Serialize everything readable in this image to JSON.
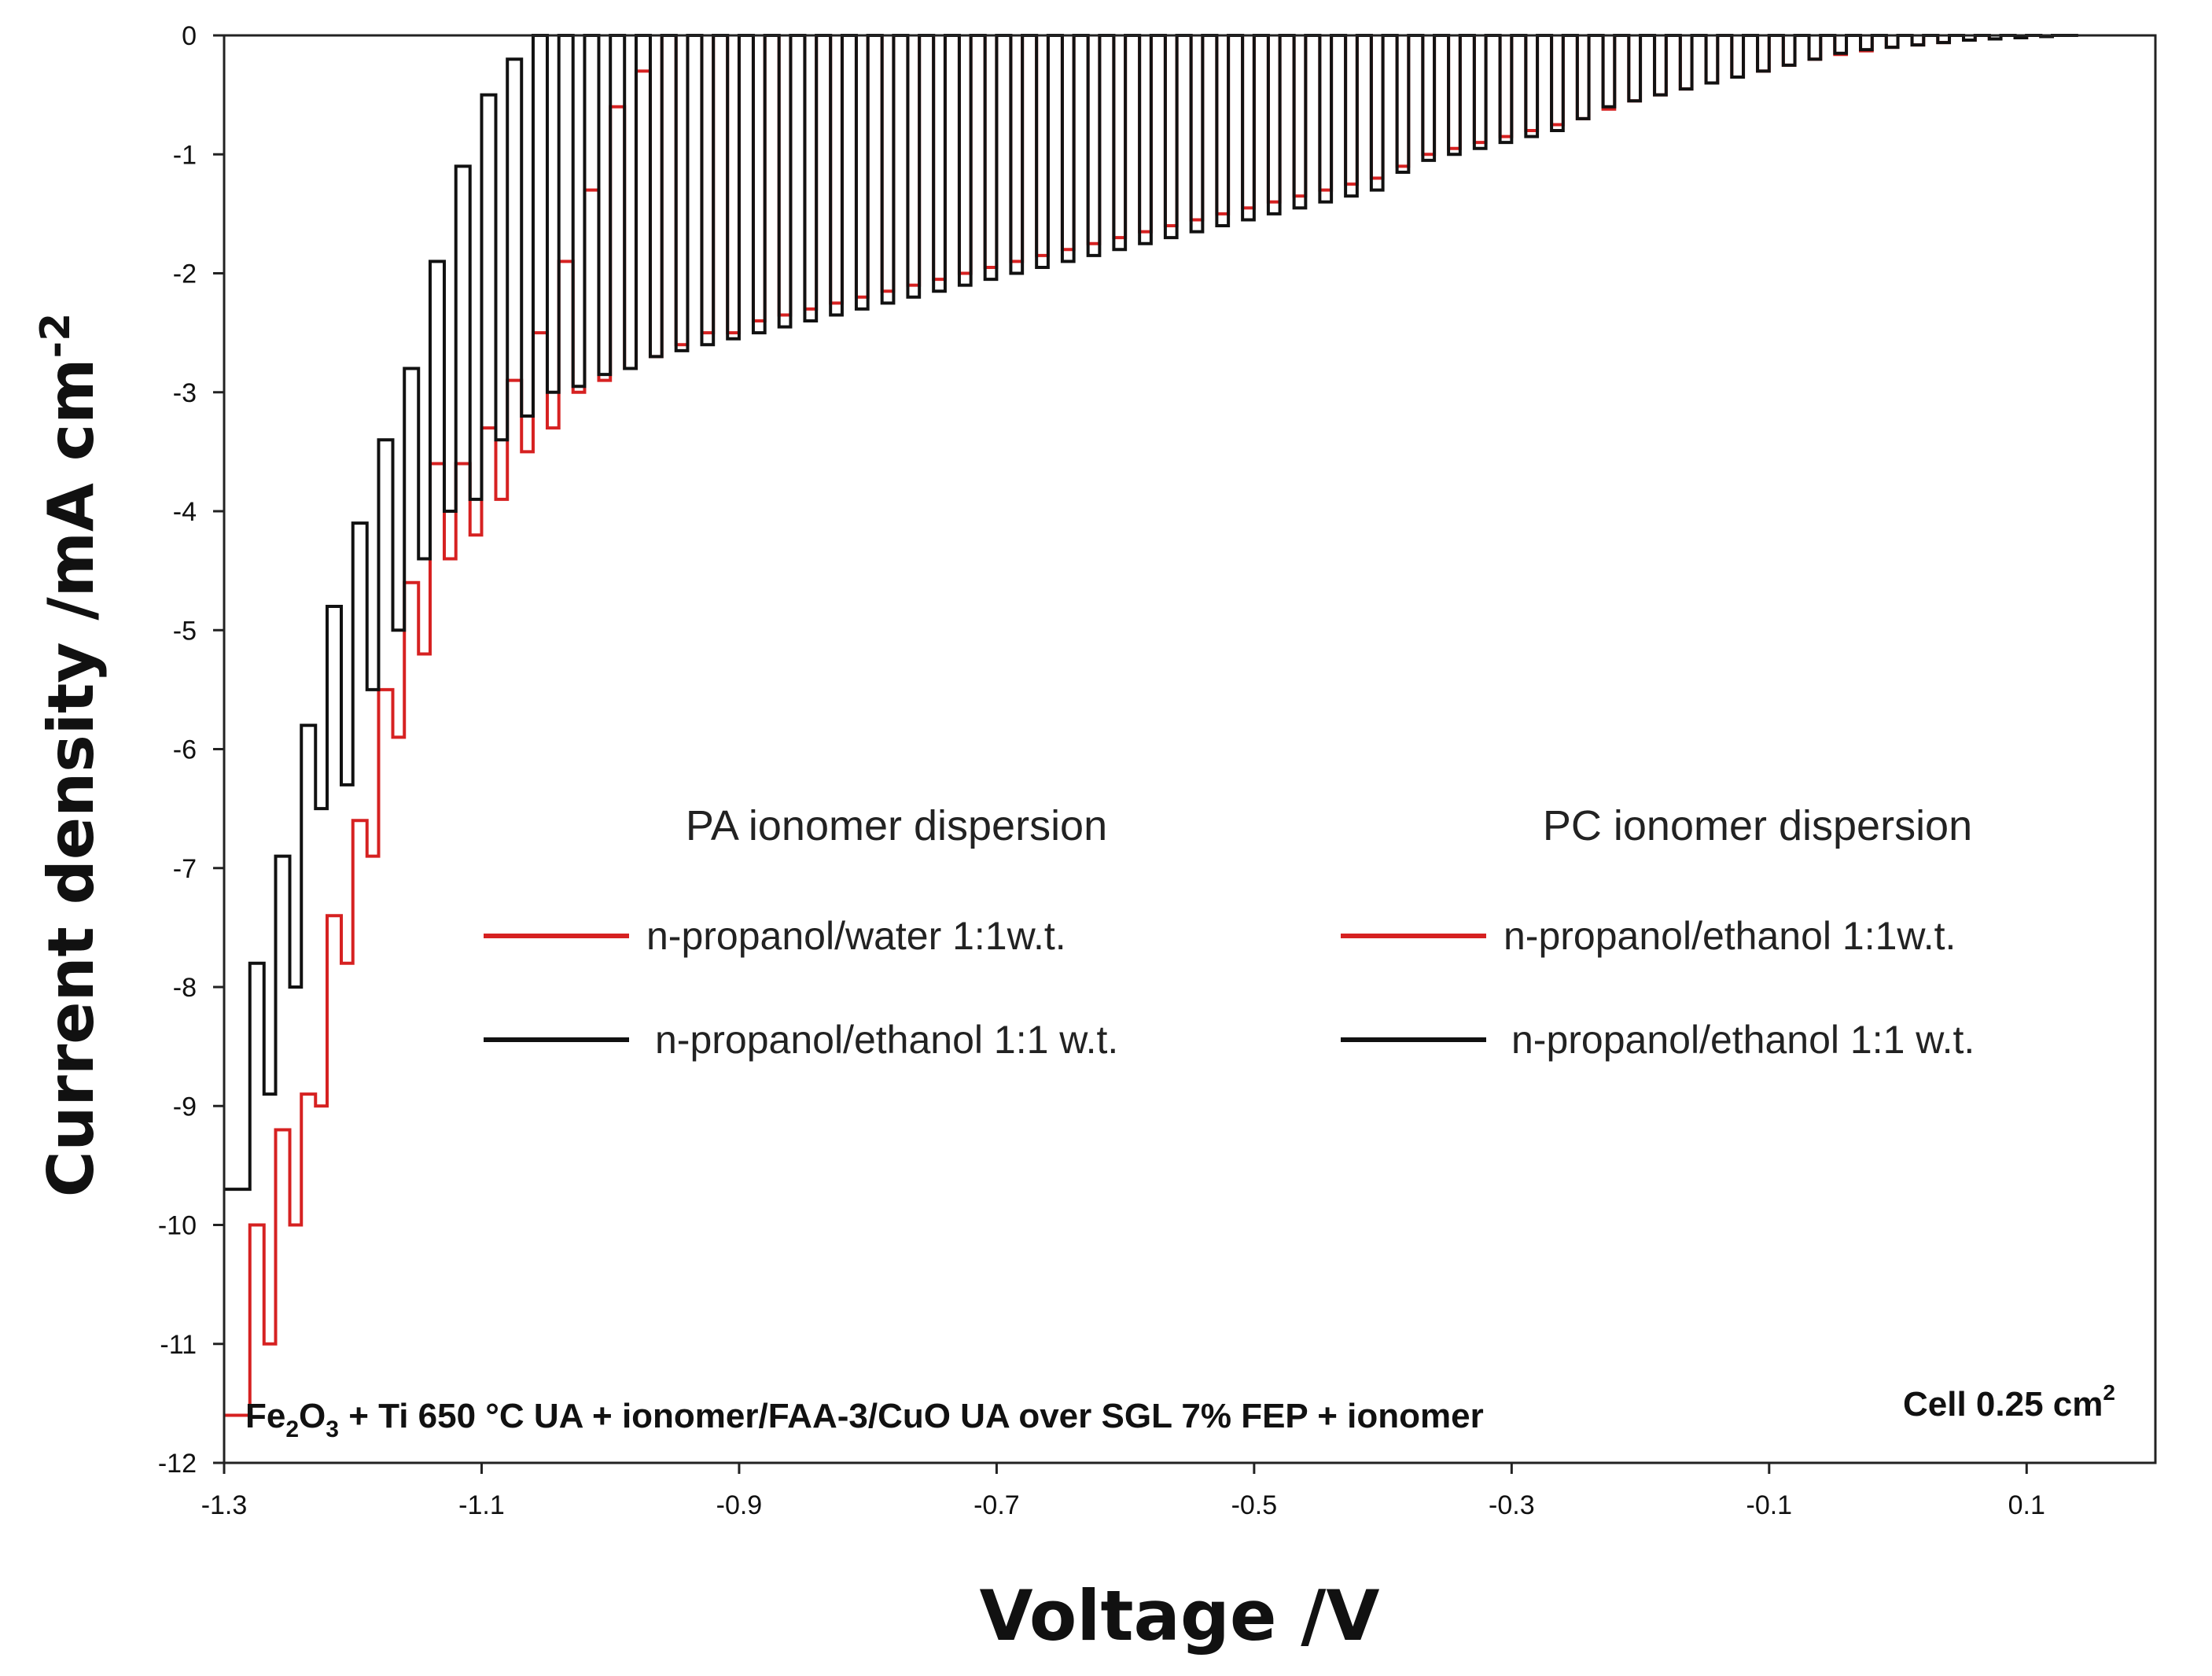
{
  "chart_data": {
    "type": "line",
    "xlabel": "Voltage /V",
    "ylabel_main": "Current density /mA cm",
    "ylabel_sup": "-2",
    "xlim": [
      -1.3,
      0.2
    ],
    "ylim": [
      -12,
      0
    ],
    "x_ticks": [
      "-1.3",
      "-1.1",
      "-0.9",
      "-0.7",
      "-0.5",
      "-0.3",
      "-0.1",
      "0.1"
    ],
    "y_ticks": [
      "0",
      "-1",
      "-2",
      "-3",
      "-4",
      "-5",
      "-6",
      "-7",
      "-8",
      "-9",
      "-10",
      "-11",
      "-12"
    ],
    "legend": {
      "group_left_title": "PA ionomer dispersion",
      "group_right_title": "PC ionomer dispersion",
      "entries": [
        {
          "label": "n-propanol/water 1:1w.t.",
          "color": "#d62121"
        },
        {
          "label": "n-propanol/ethanol 1:1 w.t.",
          "color": "#111111"
        },
        {
          "label": "n-propanol/ethanol 1:1w.t.",
          "color": "#d62121"
        },
        {
          "label": "n-propanol/ethanol 1:1 w.t.",
          "color": "#111111"
        }
      ]
    },
    "annotation": {
      "part1": "Fe",
      "sub1": "2",
      "part2": "O",
      "sub2": "3",
      "part3": " + Ti 650 °C UA + ionomer/FAA-3/CuO UA over SGL 7% FEP + ionomer"
    },
    "cell_label": {
      "text": "Cell 0.25 cm",
      "sup": "2"
    },
    "series": [
      {
        "name": "n-propanol/water 1:1w.t.",
        "color": "#d62121",
        "x": [
          -1.3,
          -1.28,
          -1.26,
          -1.24,
          -1.22,
          -1.2,
          -1.18,
          -1.16,
          -1.14,
          -1.12,
          -1.1,
          -1.08,
          -1.06,
          -1.04,
          -1.02,
          -1.0,
          -0.98,
          -0.96,
          -0.94,
          -0.92,
          -0.9,
          -0.88,
          -0.86,
          -0.84,
          -0.82,
          -0.8,
          -0.78,
          -0.76,
          -0.74,
          -0.72,
          -0.7,
          -0.68,
          -0.66,
          -0.64,
          -0.62,
          -0.6,
          -0.58,
          -0.56,
          -0.54,
          -0.52,
          -0.5,
          -0.48,
          -0.46,
          -0.44,
          -0.42,
          -0.4,
          -0.38,
          -0.36,
          -0.34,
          -0.32,
          -0.3,
          -0.28,
          -0.26,
          -0.24,
          -0.22,
          -0.2,
          -0.18,
          -0.16,
          -0.14,
          -0.12,
          -0.1,
          -0.08,
          -0.06,
          -0.04,
          -0.02,
          0.0,
          0.02,
          0.04,
          0.06,
          0.08,
          0.1,
          0.12
        ],
        "y": [
          -11.6,
          -10.0,
          -9.2,
          -8.9,
          -7.4,
          -6.6,
          -5.5,
          -4.6,
          -3.6,
          -3.6,
          -3.3,
          -2.9,
          -2.5,
          -1.9,
          -1.3,
          -0.6,
          -0.3,
          0.0,
          0.0,
          0.0,
          0.0,
          0.0,
          0.0,
          0.0,
          0.0,
          0.0,
          0.0,
          0.0,
          0.0,
          0.0,
          0.0,
          0.0,
          0.0,
          0.0,
          0.0,
          0.0,
          0.0,
          0.0,
          0.0,
          0.0,
          0.0,
          0.0,
          0.0,
          0.0,
          0.0,
          0.0,
          0.0,
          0.0,
          0.0,
          0.0,
          0.0,
          0.0,
          0.0,
          0.0,
          0.0,
          0.0,
          0.0,
          0.0,
          0.0,
          0.0,
          0.0,
          0.0,
          0.0,
          0.0,
          0.0,
          0.0,
          0.0,
          0.0,
          0.0,
          0.0,
          0.0,
          0.0
        ],
        "step_low": [
          -11.6,
          -11.0,
          -10.0,
          -9.0,
          -7.8,
          -6.9,
          -5.9,
          -5.2,
          -4.4,
          -4.2,
          -3.9,
          -3.5,
          -3.3,
          -3.0,
          -2.9,
          -2.8,
          -2.7,
          -2.6,
          -2.5,
          -2.5,
          -2.4,
          -2.35,
          -2.3,
          -2.25,
          -2.2,
          -2.15,
          -2.1,
          -2.05,
          -2.0,
          -1.95,
          -1.9,
          -1.85,
          -1.8,
          -1.75,
          -1.7,
          -1.65,
          -1.6,
          -1.55,
          -1.5,
          -1.45,
          -1.4,
          -1.35,
          -1.3,
          -1.25,
          -1.2,
          -1.1,
          -1.0,
          -0.95,
          -0.9,
          -0.85,
          -0.8,
          -0.75,
          -0.7,
          -0.62,
          -0.55,
          -0.5,
          -0.45,
          -0.4,
          -0.35,
          -0.3,
          -0.25,
          -0.2,
          -0.16,
          -0.13,
          -0.1,
          -0.08,
          -0.06,
          -0.04,
          -0.03,
          -0.02,
          -0.01,
          0.0
        ]
      },
      {
        "name": "n-propanol/ethanol 1:1 w.t.",
        "color": "#111111",
        "x": [
          -1.3,
          -1.28,
          -1.26,
          -1.24,
          -1.22,
          -1.2,
          -1.18,
          -1.16,
          -1.14,
          -1.12,
          -1.1,
          -1.08,
          -1.06,
          -1.04,
          -1.02,
          -1.0,
          -0.98,
          -0.96,
          -0.94,
          -0.92,
          -0.9,
          -0.88,
          -0.86,
          -0.84,
          -0.82,
          -0.8,
          -0.78,
          -0.76,
          -0.74,
          -0.72,
          -0.7,
          -0.68,
          -0.66,
          -0.64,
          -0.62,
          -0.6,
          -0.58,
          -0.56,
          -0.54,
          -0.52,
          -0.5,
          -0.48,
          -0.46,
          -0.44,
          -0.42,
          -0.4,
          -0.38,
          -0.36,
          -0.34,
          -0.32,
          -0.3,
          -0.28,
          -0.26,
          -0.24,
          -0.22,
          -0.2,
          -0.18,
          -0.16,
          -0.14,
          -0.12,
          -0.1,
          -0.08,
          -0.06,
          -0.04,
          -0.02,
          0.0,
          0.02,
          0.04,
          0.06,
          0.08,
          0.1,
          0.12
        ],
        "y": [
          -9.7,
          -7.8,
          -6.9,
          -5.8,
          -4.8,
          -4.1,
          -3.4,
          -2.8,
          -1.9,
          -1.1,
          -0.5,
          -0.2,
          0.0,
          0.0,
          0.0,
          0.0,
          0.0,
          0.0,
          0.0,
          0.0,
          0.0,
          0.0,
          0.0,
          0.0,
          0.0,
          0.0,
          0.0,
          0.0,
          0.0,
          0.0,
          0.0,
          0.0,
          0.0,
          0.0,
          0.0,
          0.0,
          0.0,
          0.0,
          0.0,
          0.0,
          0.0,
          0.0,
          0.0,
          0.0,
          0.0,
          0.0,
          0.0,
          0.0,
          0.0,
          0.0,
          0.0,
          0.0,
          0.0,
          0.0,
          0.0,
          0.0,
          0.0,
          0.0,
          0.0,
          0.0,
          0.0,
          0.0,
          0.0,
          0.0,
          0.0,
          0.0,
          0.0,
          0.0,
          0.0,
          0.0,
          0.0,
          0.0
        ],
        "step_low": [
          -9.7,
          -8.9,
          -8.0,
          -6.5,
          -6.3,
          -5.5,
          -5.0,
          -4.4,
          -4.0,
          -3.9,
          -3.4,
          -3.2,
          -3.0,
          -2.95,
          -2.85,
          -2.8,
          -2.7,
          -2.65,
          -2.6,
          -2.55,
          -2.5,
          -2.45,
          -2.4,
          -2.35,
          -2.3,
          -2.25,
          -2.2,
          -2.15,
          -2.1,
          -2.05,
          -2.0,
          -1.95,
          -1.9,
          -1.85,
          -1.8,
          -1.75,
          -1.7,
          -1.65,
          -1.6,
          -1.55,
          -1.5,
          -1.45,
          -1.4,
          -1.35,
          -1.3,
          -1.15,
          -1.05,
          -1.0,
          -0.95,
          -0.9,
          -0.85,
          -0.8,
          -0.7,
          -0.6,
          -0.55,
          -0.5,
          -0.45,
          -0.4,
          -0.35,
          -0.3,
          -0.25,
          -0.2,
          -0.15,
          -0.12,
          -0.1,
          -0.08,
          -0.06,
          -0.04,
          -0.03,
          -0.02,
          -0.01,
          0.0
        ]
      }
    ]
  }
}
